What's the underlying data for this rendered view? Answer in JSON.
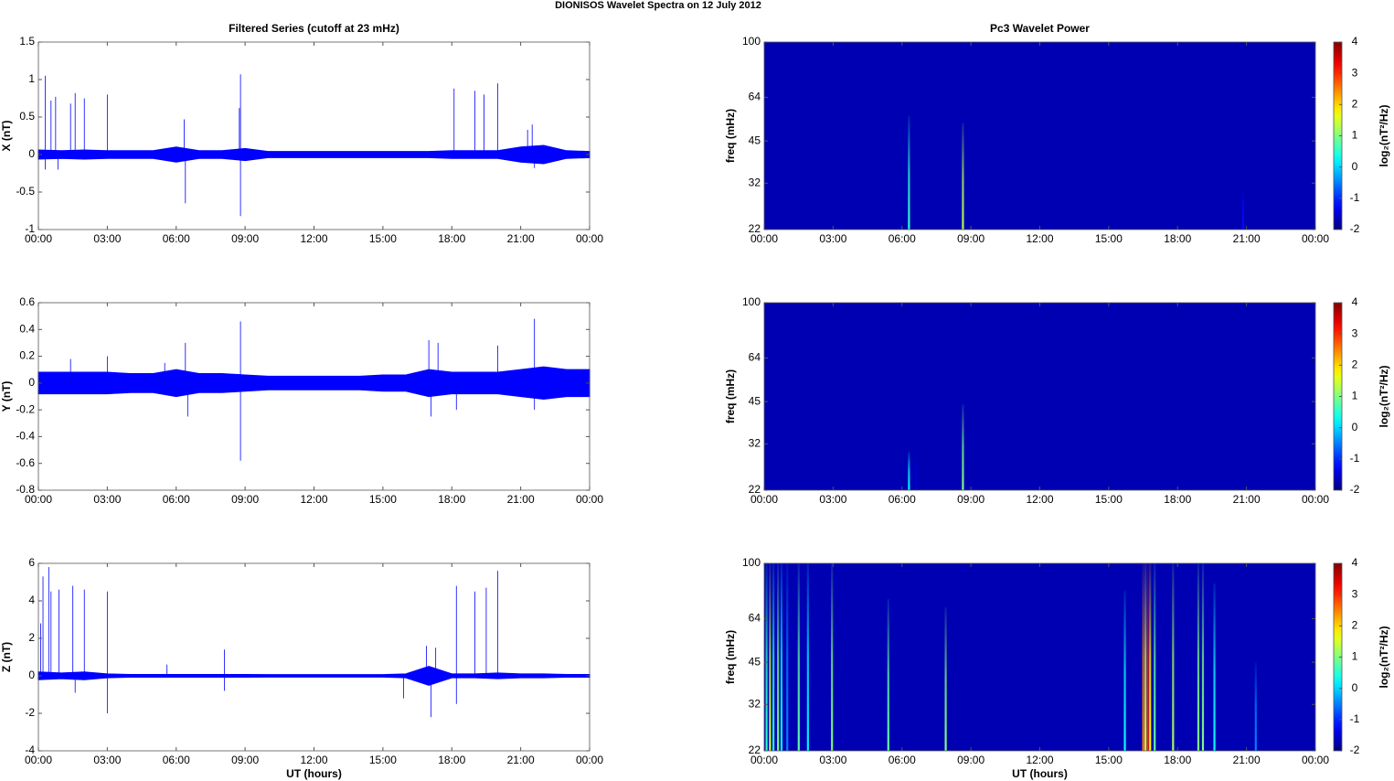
{
  "title": "DIONISOS Wavelet Spectra on 12 July      2012",
  "chart_data": [
    {
      "type": "line",
      "title": "Filtered Series (cutoff at 23 mHz)",
      "ylabel": "X (nT)",
      "color": "#0000ff",
      "xlim": [
        0,
        24
      ],
      "xticks": [
        {
          "value": 0,
          "label": "00:00"
        },
        {
          "value": 3,
          "label": "03:00"
        },
        {
          "value": 6,
          "label": "06:00"
        },
        {
          "value": 9,
          "label": "09:00"
        },
        {
          "value": 12,
          "label": "12:00"
        },
        {
          "value": 15,
          "label": "15:00"
        },
        {
          "value": 18,
          "label": "18:00"
        },
        {
          "value": 21,
          "label": "21:00"
        },
        {
          "value": 24,
          "label": "00:00"
        }
      ],
      "ylim": [
        -1,
        1.5
      ],
      "yticks": [
        -1,
        -0.5,
        0,
        0.5,
        1,
        1.5
      ],
      "envelope": {
        "x": [
          0,
          1,
          2,
          3,
          4,
          5,
          6,
          7,
          8,
          9,
          10,
          11,
          12,
          13,
          14,
          15,
          16,
          17,
          18,
          19,
          20,
          21,
          22,
          23,
          24
        ],
        "values": [
          0.06,
          0.05,
          0.06,
          0.05,
          0.05,
          0.05,
          0.1,
          0.05,
          0.05,
          0.08,
          0.04,
          0.04,
          0.04,
          0.04,
          0.04,
          0.04,
          0.04,
          0.04,
          0.05,
          0.05,
          0.05,
          0.1,
          0.12,
          0.05,
          0.04
        ]
      },
      "spikes": {
        "x": [
          0.3,
          0.3,
          0.55,
          0.75,
          0.85,
          1.4,
          1.6,
          2.0,
          3.0,
          6.35,
          6.4,
          8.75,
          8.8,
          8.8,
          18.1,
          19.0,
          19.4,
          20.0,
          21.3,
          21.5,
          21.6
        ],
        "values": [
          1.05,
          -0.2,
          0.72,
          0.77,
          -0.2,
          0.68,
          0.82,
          0.75,
          0.8,
          0.47,
          -0.65,
          0.62,
          1.07,
          -0.82,
          0.88,
          0.85,
          0.8,
          0.95,
          0.33,
          0.4,
          -0.18
        ]
      }
    },
    {
      "type": "heatmap",
      "title": "Pc3 Wavelet Power",
      "ylabel": "freq (mHz)",
      "colorbar_label": "log₂(nT²/Hz)",
      "xlim": [
        0,
        24
      ],
      "xticks": [
        {
          "value": 0,
          "label": "00:00"
        },
        {
          "value": 3,
          "label": "03:00"
        },
        {
          "value": 6,
          "label": "06:00"
        },
        {
          "value": 9,
          "label": "09:00"
        },
        {
          "value": 12,
          "label": "12:00"
        },
        {
          "value": 15,
          "label": "15:00"
        },
        {
          "value": 18,
          "label": "18:00"
        },
        {
          "value": 21,
          "label": "21:00"
        },
        {
          "value": 24,
          "label": "00:00"
        }
      ],
      "ylim": [
        22,
        100
      ],
      "yticks": [
        22,
        32,
        45,
        64,
        100
      ],
      "log_y": true,
      "clim": [
        -2,
        4
      ],
      "cticks": [
        -2,
        -1,
        0,
        1,
        2,
        3,
        4
      ],
      "background": -1.7,
      "streaks": {
        "x": [
          6.3,
          8.65,
          20.85
        ],
        "values": [
          0.5,
          1.3,
          -1.2
        ],
        "fmax": [
          55,
          52,
          30
        ]
      }
    },
    {
      "type": "line",
      "ylabel": "Y (nT)",
      "color": "#0000ff",
      "xlim": [
        0,
        24
      ],
      "xticks": [
        {
          "value": 0,
          "label": "00:00"
        },
        {
          "value": 3,
          "label": "03:00"
        },
        {
          "value": 6,
          "label": "06:00"
        },
        {
          "value": 9,
          "label": "09:00"
        },
        {
          "value": 12,
          "label": "12:00"
        },
        {
          "value": 15,
          "label": "15:00"
        },
        {
          "value": 18,
          "label": "18:00"
        },
        {
          "value": 21,
          "label": "21:00"
        },
        {
          "value": 24,
          "label": "00:00"
        }
      ],
      "ylim": [
        -0.8,
        0.6
      ],
      "yticks": [
        -0.8,
        -0.6,
        -0.4,
        -0.2,
        0,
        0.2,
        0.4,
        0.6
      ],
      "envelope": {
        "x": [
          0,
          1,
          2,
          3,
          4,
          5,
          6,
          7,
          8,
          9,
          10,
          11,
          12,
          13,
          14,
          15,
          16,
          17,
          18,
          19,
          20,
          21,
          22,
          23,
          24
        ],
        "values": [
          0.08,
          0.08,
          0.08,
          0.08,
          0.07,
          0.07,
          0.1,
          0.07,
          0.07,
          0.06,
          0.05,
          0.05,
          0.05,
          0.05,
          0.05,
          0.06,
          0.06,
          0.1,
          0.08,
          0.08,
          0.08,
          0.1,
          0.12,
          0.1,
          0.1
        ]
      },
      "spikes": {
        "x": [
          1.4,
          3.0,
          5.5,
          6.4,
          6.5,
          8.8,
          8.8,
          17.0,
          17.1,
          17.4,
          18.2,
          20.0,
          21.6,
          21.6
        ],
        "values": [
          0.18,
          0.2,
          0.15,
          0.3,
          -0.25,
          0.46,
          -0.58,
          0.32,
          -0.25,
          0.3,
          -0.2,
          0.28,
          0.48,
          -0.2
        ]
      }
    },
    {
      "type": "heatmap",
      "ylabel": "freq (mHz)",
      "colorbar_label": "log₂(nT²/Hz)",
      "xlim": [
        0,
        24
      ],
      "xticks": [
        {
          "value": 0,
          "label": "00:00"
        },
        {
          "value": 3,
          "label": "03:00"
        },
        {
          "value": 6,
          "label": "06:00"
        },
        {
          "value": 9,
          "label": "09:00"
        },
        {
          "value": 12,
          "label": "12:00"
        },
        {
          "value": 15,
          "label": "15:00"
        },
        {
          "value": 18,
          "label": "18:00"
        },
        {
          "value": 21,
          "label": "21:00"
        },
        {
          "value": 24,
          "label": "00:00"
        }
      ],
      "ylim": [
        22,
        100
      ],
      "yticks": [
        22,
        32,
        45,
        64,
        100
      ],
      "log_y": true,
      "clim": [
        -2,
        4
      ],
      "cticks": [
        -2,
        -1,
        0,
        1,
        2,
        3,
        4
      ],
      "background": -1.7,
      "streaks": {
        "x": [
          6.3,
          6.6,
          8.65
        ],
        "values": [
          0.2,
          -1.5,
          1.0
        ],
        "fmax": [
          30,
          30,
          44
        ]
      }
    },
    {
      "type": "line",
      "ylabel": "Z (nT)",
      "xlabel": "UT (hours)",
      "color": "#0000ff",
      "xlim": [
        0,
        24
      ],
      "xticks": [
        {
          "value": 0,
          "label": "00:00"
        },
        {
          "value": 3,
          "label": "03:00"
        },
        {
          "value": 6,
          "label": "06:00"
        },
        {
          "value": 9,
          "label": "09:00"
        },
        {
          "value": 12,
          "label": "12:00"
        },
        {
          "value": 15,
          "label": "15:00"
        },
        {
          "value": 18,
          "label": "18:00"
        },
        {
          "value": 21,
          "label": "21:00"
        },
        {
          "value": 24,
          "label": "00:00"
        }
      ],
      "ylim": [
        -4,
        6
      ],
      "yticks": [
        -4,
        -2,
        0,
        2,
        4,
        6
      ],
      "envelope": {
        "x": [
          0,
          1,
          2,
          3,
          4,
          5,
          6,
          7,
          8,
          9,
          10,
          11,
          12,
          13,
          14,
          15,
          16,
          17,
          18,
          19,
          20,
          21,
          22,
          23,
          24
        ],
        "values": [
          0.2,
          0.15,
          0.2,
          0.1,
          0.07,
          0.07,
          0.07,
          0.07,
          0.07,
          0.07,
          0.06,
          0.06,
          0.06,
          0.06,
          0.06,
          0.06,
          0.1,
          0.5,
          0.1,
          0.1,
          0.15,
          0.1,
          0.1,
          0.07,
          0.07
        ]
      },
      "spikes": {
        "x": [
          0.1,
          0.2,
          0.45,
          0.55,
          0.9,
          1.5,
          1.6,
          2.0,
          3.0,
          3.0,
          5.6,
          8.1,
          8.1,
          15.9,
          16.9,
          17.1,
          17.3,
          18.2,
          18.2,
          19.0,
          19.5,
          20.0
        ],
        "values": [
          2.8,
          5.3,
          5.8,
          4.5,
          4.6,
          4.8,
          -0.9,
          4.6,
          4.5,
          -2.0,
          0.6,
          1.4,
          -0.8,
          -1.2,
          1.6,
          -2.2,
          1.5,
          4.8,
          -1.5,
          4.5,
          4.7,
          5.6
        ]
      }
    },
    {
      "type": "heatmap",
      "ylabel": "freq (mHz)",
      "xlabel": "UT (hours)",
      "colorbar_label": "log₂(nT²/Hz)",
      "xlim": [
        0,
        24
      ],
      "xticks": [
        {
          "value": 0,
          "label": "00:00"
        },
        {
          "value": 3,
          "label": "03:00"
        },
        {
          "value": 6,
          "label": "06:00"
        },
        {
          "value": 9,
          "label": "09:00"
        },
        {
          "value": 12,
          "label": "12:00"
        },
        {
          "value": 15,
          "label": "15:00"
        },
        {
          "value": 18,
          "label": "18:00"
        },
        {
          "value": 21,
          "label": "21:00"
        },
        {
          "value": 24,
          "label": "00:00"
        }
      ],
      "ylim": [
        22,
        100
      ],
      "yticks": [
        22,
        32,
        45,
        64,
        100
      ],
      "log_y": true,
      "clim": [
        -2,
        4
      ],
      "cticks": [
        -2,
        -1,
        0,
        1,
        2,
        3,
        4
      ],
      "background": -1.7,
      "streaks": {
        "x": [
          0.1,
          0.25,
          0.4,
          0.6,
          0.75,
          1.0,
          1.5,
          1.9,
          2.95,
          5.4,
          7.9,
          15.7,
          16.5,
          16.6,
          16.7,
          16.8,
          17.0,
          17.8,
          18.9,
          19.1,
          19.6,
          21.4
        ],
        "values": [
          0.5,
          1.5,
          0.5,
          1.0,
          0.3,
          -0.5,
          0.8,
          0.2,
          1.0,
          0.8,
          1.0,
          0.3,
          2.5,
          1.5,
          3.0,
          1.8,
          0.8,
          1.2,
          1.0,
          1.0,
          0.3,
          -0.5
        ],
        "fmax": [
          100,
          100,
          100,
          100,
          100,
          100,
          100,
          100,
          100,
          75,
          70,
          80,
          100,
          100,
          100,
          100,
          100,
          100,
          100,
          100,
          85,
          45
        ]
      }
    }
  ]
}
